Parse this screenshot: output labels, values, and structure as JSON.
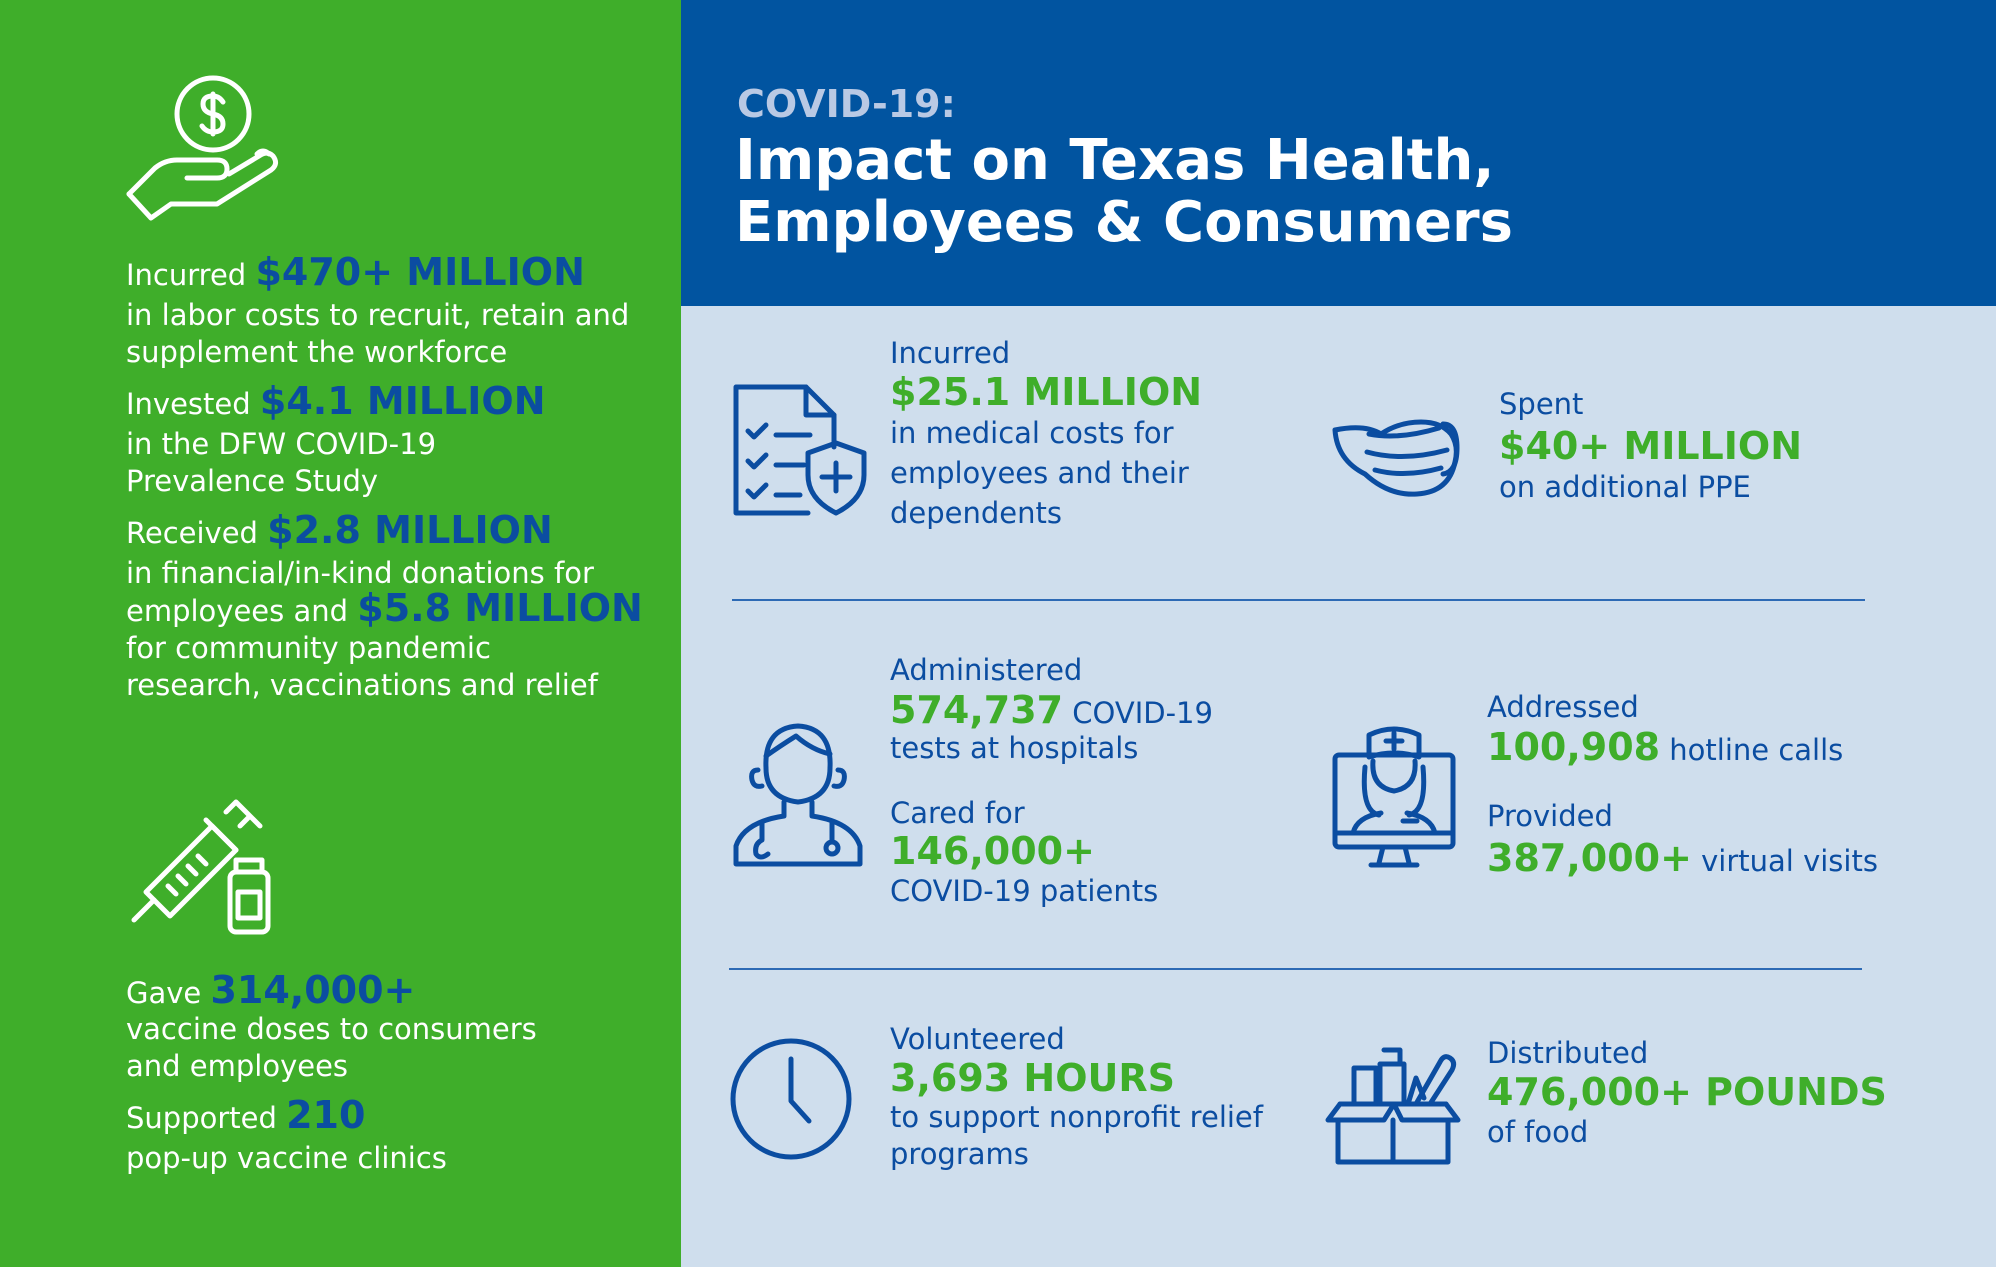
{
  "header": {
    "eyebrow": "COVID-19:",
    "title_line1": "Impact on Texas Health,",
    "title_line2": "Employees & Consumers"
  },
  "left_panel": {
    "labor": {
      "prefix": "Incurred ",
      "amount": "$470+ MILLION",
      "line1": "in labor costs to recruit, retain and",
      "line2": "supplement the workforce"
    },
    "study": {
      "prefix": "Invested ",
      "amount": "$4.1 MILLION",
      "line1": "in the DFW COVID-19",
      "line2": "Prevalence Study"
    },
    "donations": {
      "prefix": "Received ",
      "amount": "$2.8 MILLION",
      "line1": "in financial/in-kind donations for",
      "line2_prefix": "employees and ",
      "amount2": "$5.8 MILLION",
      "line3": "for community pandemic",
      "line4": "research, vaccinations and relief"
    },
    "vaccines": {
      "prefix": "Gave ",
      "amount": "314,000+",
      "line1": "vaccine doses to consumers",
      "line2": "and employees"
    },
    "clinics": {
      "prefix": "Supported ",
      "amount": "210",
      "line1": "pop-up vaccine clinics"
    }
  },
  "stats": {
    "medical": {
      "label": "Incurred",
      "value": "$25.1 MILLION",
      "line1": "in medical costs for",
      "line2": "employees and their",
      "line3": "dependents"
    },
    "ppe": {
      "label": "Spent",
      "value": "$40+ MILLION",
      "line1": "on additional PPE"
    },
    "tests": {
      "label": "Administered",
      "value": "574,737",
      "suffix": " COVID-19",
      "line1": "tests at hospitals"
    },
    "patients": {
      "label": "Cared for",
      "value": "146,000+",
      "line1": "COVID-19 patients"
    },
    "hotline": {
      "label": "Addressed",
      "value": "100,908",
      "suffix": " hotline calls"
    },
    "virtual": {
      "label": "Provided",
      "value": "387,000+",
      "suffix": " virtual visits"
    },
    "volunteer": {
      "label": "Volunteered",
      "value": "3,693 HOURS",
      "line1": "to support nonprofit relief",
      "line2": "programs"
    },
    "food": {
      "label": "Distributed",
      "value": "476,000+ POUNDS",
      "line1": "of food"
    }
  },
  "icons": [
    "money-hand-icon",
    "syringe-vial-icon",
    "medical-document-shield-icon",
    "face-mask-icon",
    "doctor-icon",
    "nurse-monitor-icon",
    "clock-icon",
    "food-box-icon"
  ],
  "colors": {
    "green": "#3fae2a",
    "dark_blue": "#0154a0",
    "light_blue_bg": "#cfdeed",
    "text_blue": "#0b4da1",
    "eyebrow": "#b9c9e4"
  }
}
